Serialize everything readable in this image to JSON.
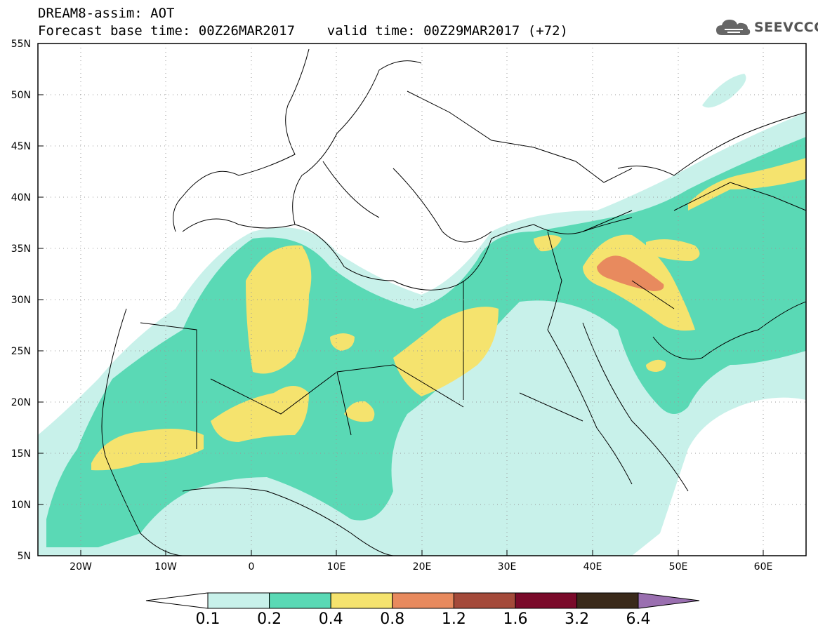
{
  "header": {
    "line1": "DREAM8-assim: AOT",
    "line2": "Forecast base time: 00Z26MAR2017    valid time: 00Z29MAR2017 (+72)"
  },
  "logo": {
    "text": "SEEVCCC",
    "icon": "cloud-icon"
  },
  "map": {
    "lon_range": [
      -25,
      65
    ],
    "lat_range": [
      5,
      55
    ],
    "lat_labels": [
      "55N",
      "50N",
      "45N",
      "40N",
      "35N",
      "30N",
      "25N",
      "20N",
      "15N",
      "10N",
      "5N"
    ],
    "lon_labels": [
      "20W",
      "10W",
      "0",
      "10E",
      "20E",
      "30E",
      "40E",
      "50E",
      "60E"
    ],
    "grid": "dotted"
  },
  "colorbar": {
    "levels": [
      "0.1",
      "0.2",
      "0.4",
      "0.8",
      "1.2",
      "1.6",
      "3.2",
      "6.4"
    ],
    "colors": [
      "#ffffff",
      "#c8f1ea",
      "#5ad9b5",
      "#f5e36e",
      "#e88a5e",
      "#a44a3a",
      "#7a0a2a",
      "#3a2a1a",
      "#9a6fb0"
    ]
  }
}
